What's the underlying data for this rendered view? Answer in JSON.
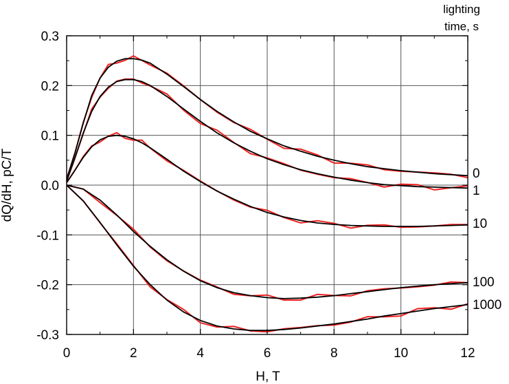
{
  "chart_data": {
    "type": "line",
    "title": "",
    "xlabel": "H, T",
    "ylabel": "dQ/dH, pC/T",
    "xlim": [
      0,
      12
    ],
    "ylim": [
      -0.3,
      0.3
    ],
    "x_ticks": [
      "0",
      "2",
      "4",
      "6",
      "8",
      "10",
      "12"
    ],
    "y_ticks": [
      "-0.3",
      "-0.2",
      "-0.1",
      "0.0",
      "0.1",
      "0.2",
      "0.3"
    ],
    "grid": true,
    "legend_title": [
      "lighting",
      "time, s"
    ],
    "fit_color": "#000000",
    "measured_color": "#ee2020",
    "series": [
      {
        "name": "0",
        "x": [
          0,
          0.25,
          0.5,
          0.75,
          1,
          1.25,
          1.5,
          1.75,
          2,
          2.25,
          2.5,
          3,
          3.5,
          4,
          4.5,
          5,
          5.5,
          6,
          6.5,
          7,
          7.5,
          8,
          8.5,
          9,
          9.5,
          10,
          10.5,
          11,
          11.5,
          12
        ],
        "y": [
          0.012,
          0.065,
          0.125,
          0.18,
          0.215,
          0.237,
          0.249,
          0.254,
          0.254,
          0.251,
          0.245,
          0.223,
          0.198,
          0.172,
          0.148,
          0.127,
          0.108,
          0.093,
          0.079,
          0.068,
          0.058,
          0.05,
          0.043,
          0.037,
          0.033,
          0.029,
          0.026,
          0.023,
          0.021,
          0.019
        ]
      },
      {
        "name": "1",
        "x": [
          0,
          0.25,
          0.5,
          0.75,
          1,
          1.25,
          1.5,
          1.75,
          2,
          2.25,
          2.5,
          3,
          3.5,
          4,
          4.5,
          5,
          5.5,
          6,
          6.5,
          7,
          7.5,
          8,
          8.5,
          9,
          9.5,
          10,
          10.5,
          11,
          11.5,
          12
        ],
        "y": [
          0.008,
          0.055,
          0.105,
          0.148,
          0.178,
          0.197,
          0.208,
          0.212,
          0.212,
          0.208,
          0.2,
          0.178,
          0.153,
          0.128,
          0.105,
          0.085,
          0.068,
          0.053,
          0.041,
          0.031,
          0.023,
          0.016,
          0.01,
          0.005,
          0.001,
          -0.001,
          -0.003,
          -0.004,
          -0.005,
          -0.006
        ]
      },
      {
        "name": "10",
        "x": [
          0,
          0.25,
          0.5,
          0.75,
          1,
          1.25,
          1.5,
          1.75,
          2,
          2.25,
          2.5,
          3,
          3.5,
          4,
          4.5,
          5,
          5.5,
          6,
          6.5,
          7,
          7.5,
          8,
          8.5,
          9,
          9.5,
          10,
          10.5,
          11,
          11.5,
          12
        ],
        "y": [
          0.005,
          0.03,
          0.056,
          0.077,
          0.091,
          0.098,
          0.1,
          0.098,
          0.093,
          0.085,
          0.075,
          0.052,
          0.028,
          0.007,
          -0.012,
          -0.028,
          -0.043,
          -0.055,
          -0.064,
          -0.071,
          -0.076,
          -0.079,
          -0.081,
          -0.082,
          -0.083,
          -0.083,
          -0.083,
          -0.082,
          -0.081,
          -0.08
        ]
      },
      {
        "name": "100",
        "x": [
          0,
          0.5,
          1,
          1.5,
          2,
          2.5,
          3,
          3.5,
          4,
          4.5,
          5,
          5.5,
          6,
          6.5,
          7,
          7.5,
          8,
          8.5,
          9,
          9.5,
          10,
          10.5,
          11,
          11.5,
          12
        ],
        "y": [
          0,
          -0.008,
          -0.03,
          -0.06,
          -0.093,
          -0.123,
          -0.15,
          -0.173,
          -0.192,
          -0.206,
          -0.216,
          -0.222,
          -0.226,
          -0.228,
          -0.227,
          -0.225,
          -0.222,
          -0.218,
          -0.214,
          -0.21,
          -0.206,
          -0.203,
          -0.2,
          -0.198,
          -0.196
        ]
      },
      {
        "name": "1000",
        "x": [
          0,
          0.5,
          1,
          1.5,
          2,
          2.5,
          3,
          3.5,
          4,
          4.5,
          5,
          5.5,
          6,
          6.5,
          7,
          7.5,
          8,
          8.5,
          9,
          9.5,
          10,
          10.5,
          11,
          11.5,
          12
        ],
        "y": [
          0,
          -0.032,
          -0.075,
          -0.12,
          -0.163,
          -0.2,
          -0.231,
          -0.255,
          -0.272,
          -0.283,
          -0.289,
          -0.292,
          -0.292,
          -0.29,
          -0.287,
          -0.283,
          -0.279,
          -0.274,
          -0.269,
          -0.263,
          -0.258,
          -0.253,
          -0.248,
          -0.244,
          -0.24
        ]
      }
    ]
  }
}
